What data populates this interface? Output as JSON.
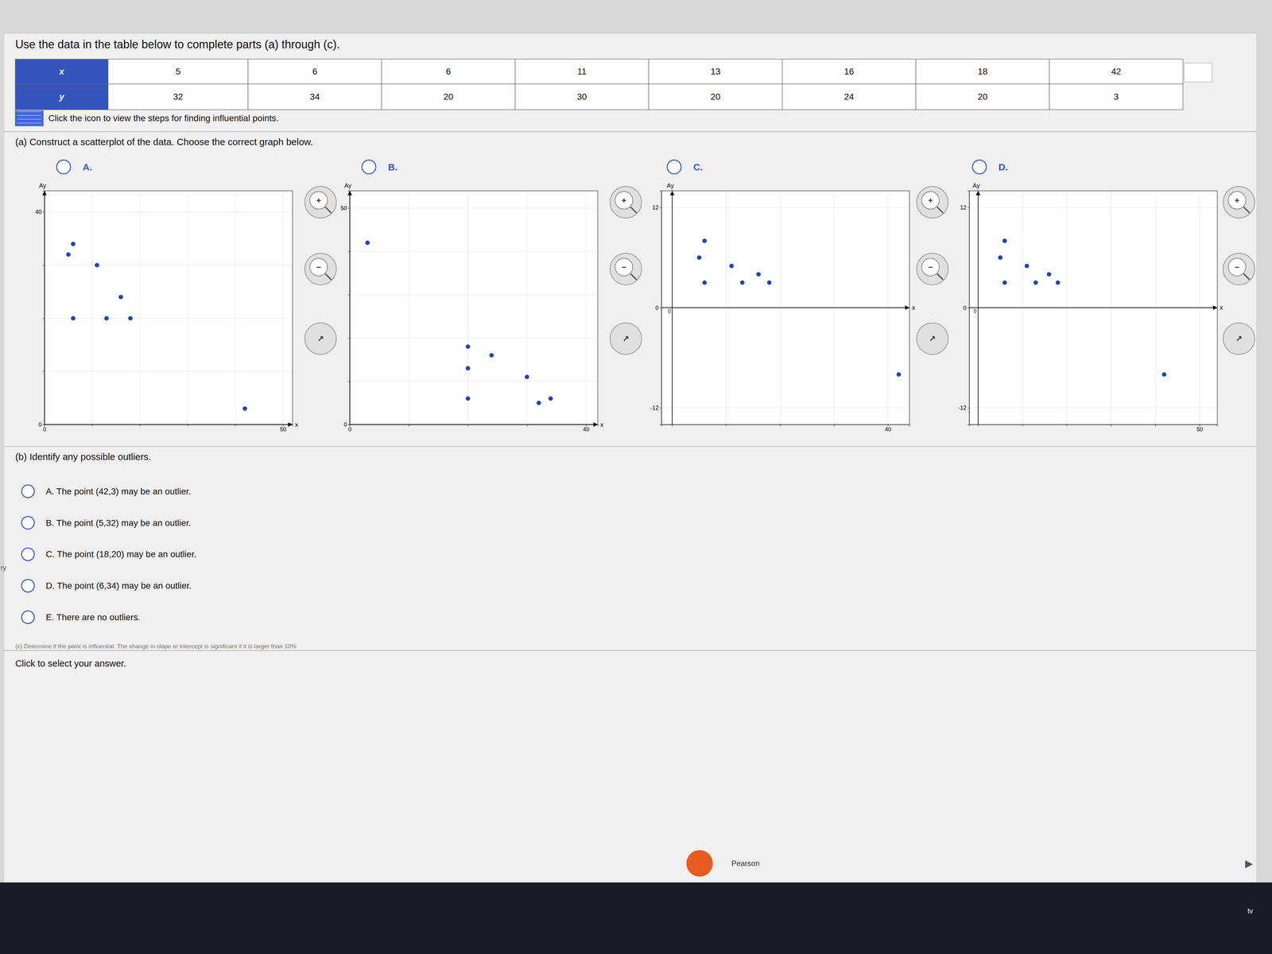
{
  "page": {
    "title": "Use the data in the table below to complete parts (a) through (c).",
    "table": {
      "x_header": "x",
      "y_header": "y",
      "x": [
        5,
        6,
        6,
        11,
        13,
        16,
        18,
        42
      ],
      "y": [
        32,
        34,
        20,
        30,
        20,
        24,
        20,
        3
      ]
    },
    "icon_text": "Click the icon to view the steps for finding influential points.",
    "part_a": "(a) Construct a scatterplot of the data. Choose the correct graph below.",
    "part_b": "(b) Identify any possible outliers.",
    "options_b": [
      "A.  The point (42,3) may be an outlier.",
      "B.  The point (5,32) may be an outlier.",
      "C.  The point (18,20) may be an outlier.",
      "D.  The point (6,34) may be an outlier.",
      "E.  There are no outliers."
    ],
    "part_c_partial": "(c) Determine if the point is influential. The change in slope or intercept is significant if it is larger than 10%",
    "click_text": "Click to select your answer.",
    "zoom_in": "+",
    "zoom_out": "−",
    "resize": "↗",
    "logo_text": "Pearson",
    "next": "▶",
    "dock_text": "tv",
    "edge_text": "ry"
  },
  "chart_data": [
    {
      "type": "scatter",
      "title": "A.",
      "xlabel": "x",
      "ylabel": "Ay",
      "x": [
        5,
        6,
        6,
        11,
        13,
        16,
        18,
        42
      ],
      "values": [
        32,
        34,
        20,
        30,
        20,
        24,
        20,
        3
      ],
      "color": "#2244bb",
      "xlim": [
        0,
        52
      ],
      "ylim": [
        0,
        44
      ],
      "xticks": [
        0,
        {
          "value": 10,
          "label": null
        },
        {
          "value": 20,
          "label": null
        },
        {
          "value": 30,
          "label": null
        },
        {
          "value": 40,
          "label": null
        },
        50
      ],
      "yticks": [
        0,
        {
          "value": 10,
          "label": null
        },
        {
          "value": 20,
          "label": null
        },
        {
          "value": 30,
          "label": null
        },
        40
      ],
      "grid": true
    },
    {
      "type": "scatter",
      "title": "B.",
      "xlabel": "x",
      "ylabel": "Ay",
      "x": [
        3,
        20,
        20,
        20,
        24,
        30,
        32,
        34
      ],
      "values": [
        42,
        18,
        13,
        6,
        16,
        11,
        5,
        6
      ],
      "color": "#2244bb",
      "xlim": [
        0,
        42
      ],
      "ylim": [
        0,
        54
      ],
      "xticks": [
        0,
        {
          "value": 10,
          "label": null
        },
        {
          "value": 20,
          "label": null
        },
        {
          "value": 30,
          "label": null
        },
        40
      ],
      "yticks": [
        0,
        {
          "value": 10,
          "label": null
        },
        {
          "value": 20,
          "label": null
        },
        {
          "value": 30,
          "label": null
        },
        {
          "value": 40,
          "label": null
        },
        50
      ],
      "grid": true
    },
    {
      "type": "scatter",
      "title": "C.",
      "xlabel": "x",
      "ylabel": "Ay",
      "x": [
        5,
        6,
        6,
        11,
        13,
        16,
        18,
        42
      ],
      "values": [
        6,
        8,
        3,
        5,
        3,
        4,
        3,
        -8
      ],
      "color": "#2244bb",
      "xlim": [
        -2,
        44
      ],
      "ylim": [
        -14,
        14
      ],
      "xticks": [
        {
          "value": 0,
          "label": null
        },
        {
          "value": 10,
          "label": null
        },
        {
          "value": 20,
          "label": null
        },
        {
          "value": 30,
          "label": null
        },
        40
      ],
      "yticks": [
        -12,
        0,
        12
      ],
      "annotations": [
        "0"
      ],
      "grid": true
    },
    {
      "type": "scatter",
      "title": "D.",
      "xlabel": "x",
      "ylabel": "Ay",
      "x": [
        5,
        6,
        6,
        11,
        13,
        16,
        18,
        42
      ],
      "values": [
        6,
        8,
        3,
        5,
        3,
        4,
        3,
        -8
      ],
      "color": "#2244bb",
      "xlim": [
        -2,
        54
      ],
      "ylim": [
        -14,
        14
      ],
      "xticks": [
        {
          "value": 0,
          "label": null
        },
        {
          "value": 10,
          "label": null
        },
        {
          "value": 20,
          "label": null
        },
        {
          "value": 30,
          "label": null
        },
        {
          "value": 40,
          "label": null
        },
        50
      ],
      "yticks": [
        -12,
        0,
        12
      ],
      "annotations": [
        "0"
      ],
      "grid": true
    }
  ]
}
